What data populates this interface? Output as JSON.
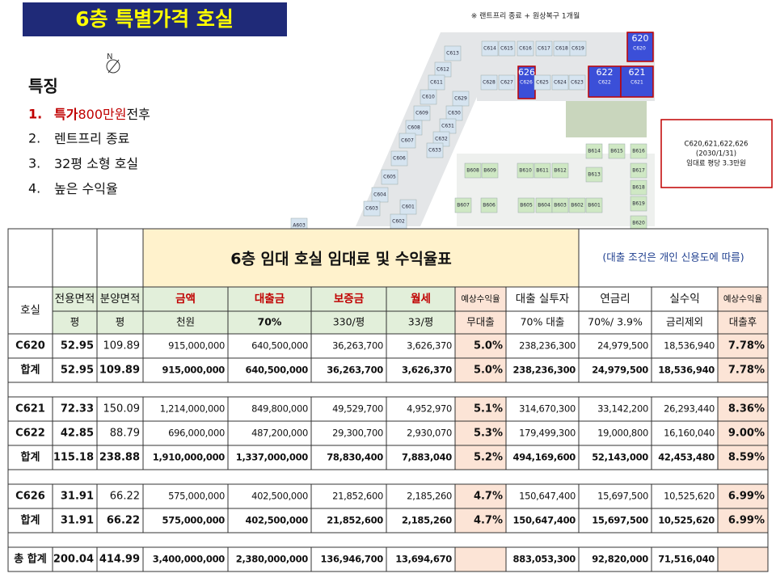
{
  "header": {
    "title": "6층 특별가격 호실",
    "note": "※ 랜트프리 종료 + 원상복구 1개월",
    "compass": "N"
  },
  "features": {
    "title": "특징",
    "items": [
      {
        "num": "1.",
        "highlight": "특가",
        "highlight2": "800만원",
        "rest": "전후"
      },
      {
        "num": "2.",
        "rest": "렌트프리 종료"
      },
      {
        "num": "3.",
        "rest": "32평 소형 호실"
      },
      {
        "num": "4.",
        "rest": "높은 수익율"
      }
    ]
  },
  "info_box": {
    "lines": [
      "C620,621,622,626",
      "(2030/1/31)",
      "임대료 평당 3.3만원"
    ]
  },
  "floor_plan": {
    "units": [
      "C614",
      "C615",
      "C616",
      "C617",
      "C618",
      "C619",
      "C620",
      "C628",
      "C627",
      "C626",
      "C625",
      "C624",
      "C623",
      "C622",
      "C621",
      "C613",
      "C612",
      "C611",
      "C610",
      "C609",
      "C608",
      "C607",
      "C606",
      "C605",
      "C604",
      "C603",
      "C602",
      "C601",
      "C629",
      "C630",
      "C631",
      "C632",
      "C633",
      "A603",
      "B608",
      "B609",
      "B610",
      "B611",
      "B612",
      "B613",
      "B614",
      "B615",
      "B616",
      "B617",
      "B618",
      "B619",
      "B620",
      "B607",
      "B606",
      "B605",
      "B604",
      "B603",
      "B602",
      "B601"
    ],
    "highlights": [
      "620",
      "626",
      "622",
      "621"
    ]
  },
  "table": {
    "title": "6층 임대 호실 임대료 및 수익율표",
    "note": "(대출 조건은 개인 신용도에 따름)",
    "headers": [
      "호실",
      "전용면적",
      "분양면적",
      "금액",
      "대출금",
      "보증금",
      "월세",
      "예상수익율",
      "대출 실투자",
      "연금리",
      "실수익",
      "예상수익율"
    ],
    "subheaders": [
      "평",
      "평",
      "천원",
      "70%",
      "330/평",
      "33/평",
      "무대출",
      "70% 대출",
      "70%/ 3.9%",
      "금리제외",
      "대출후"
    ],
    "groups": [
      [
        [
          "C620",
          "52.95",
          "109.89",
          "915,000,000",
          "640,500,000",
          "36,263,700",
          "3,626,370",
          "5.0%",
          "238,236,300",
          "24,979,500",
          "18,536,940",
          "7.78%"
        ],
        [
          "합계",
          "52.95",
          "109.89",
          "915,000,000",
          "640,500,000",
          "36,263,700",
          "3,626,370",
          "5.0%",
          "238,236,300",
          "24,979,500",
          "18,536,940",
          "7.78%"
        ]
      ],
      [
        [
          "C621",
          "72.33",
          "150.09",
          "1,214,000,000",
          "849,800,000",
          "49,529,700",
          "4,952,970",
          "5.1%",
          "314,670,300",
          "33,142,200",
          "26,293,440",
          "8.36%"
        ],
        [
          "C622",
          "42.85",
          "88.79",
          "696,000,000",
          "487,200,000",
          "29,300,700",
          "2,930,070",
          "5.3%",
          "179,499,300",
          "19,000,800",
          "16,160,040",
          "9.00%"
        ],
        [
          "합계",
          "115.18",
          "238.88",
          "1,910,000,000",
          "1,337,000,000",
          "78,830,400",
          "7,883,040",
          "5.2%",
          "494,169,600",
          "52,143,000",
          "42,453,480",
          "8.59%"
        ]
      ],
      [
        [
          "C626",
          "31.91",
          "66.22",
          "575,000,000",
          "402,500,000",
          "21,852,600",
          "2,185,260",
          "4.7%",
          "150,647,400",
          "15,697,500",
          "10,525,620",
          "6.99%"
        ],
        [
          "합계",
          "31.91",
          "66.22",
          "575,000,000",
          "402,500,000",
          "21,852,600",
          "2,185,260",
          "4.7%",
          "150,647,400",
          "15,697,500",
          "10,525,620",
          "6.99%"
        ]
      ],
      [
        [
          "총 합계",
          "200.04",
          "414.99",
          "3,400,000,000",
          "2,380,000,000",
          "136,946,700",
          "13,694,670",
          null,
          "883,053,300",
          "92,820,000",
          "71,516,040",
          null
        ]
      ]
    ]
  }
}
